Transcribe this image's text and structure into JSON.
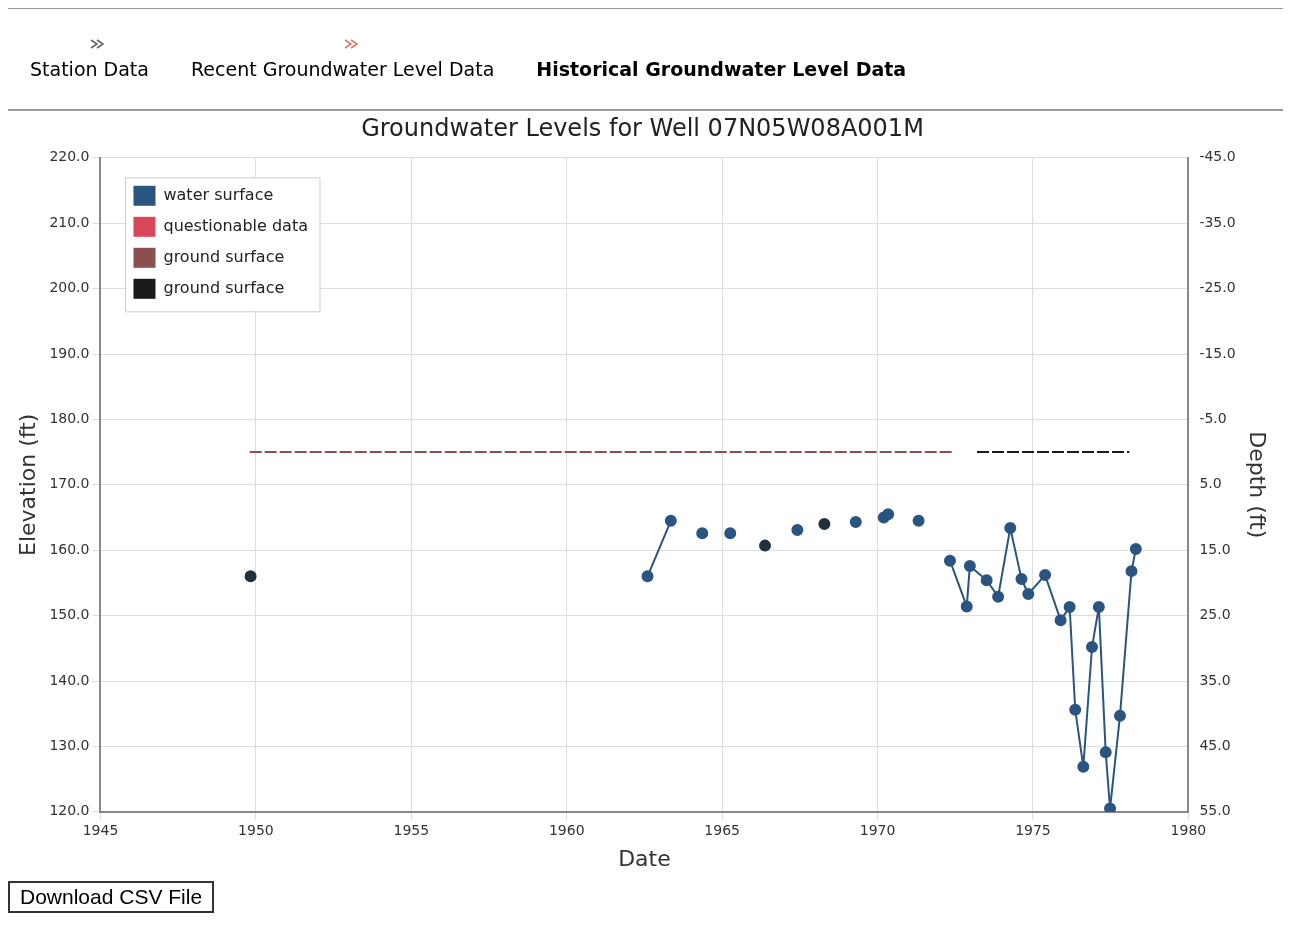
{
  "chart_data": {
    "type": "line",
    "title": "Groundwater Levels for Well 07N05W08A001M",
    "xlabel": "Date",
    "ylabel": "Elevation (ft)",
    "y2label": "Depth (ft)",
    "annotations": [
      "Station Data",
      "Recent Groundwater Level Data",
      "Historical Groundwater Level Data",
      "Download CSV File"
    ],
    "xlim": [
      1945,
      1980
    ],
    "xticks": [
      1945,
      1950,
      1955,
      1960,
      1965,
      1970,
      1975,
      1980
    ],
    "ylim": [
      120,
      220
    ],
    "yticks": [
      {
        "value": 120,
        "label": "120.0"
      },
      {
        "value": 130,
        "label": "130.0"
      },
      {
        "value": 140,
        "label": "140.0"
      },
      {
        "value": 150,
        "label": "150.0"
      },
      {
        "value": 160,
        "label": "160.0"
      },
      {
        "value": 170,
        "label": "170.0"
      },
      {
        "value": 180,
        "label": "180.0"
      },
      {
        "value": 190,
        "label": "190.0"
      },
      {
        "value": 200,
        "label": "200.0"
      },
      {
        "value": 210,
        "label": "210.0"
      },
      {
        "value": 220,
        "label": "220.0"
      }
    ],
    "y2lim": [
      55,
      -45
    ],
    "y2ticks": [
      {
        "value": 55,
        "label": "55.0"
      },
      {
        "value": 45,
        "label": "45.0"
      },
      {
        "value": 35,
        "label": "35.0"
      },
      {
        "value": 25,
        "label": "25.0"
      },
      {
        "value": 15,
        "label": "15.0"
      },
      {
        "value": 5,
        "label": "5.0"
      },
      {
        "value": -5,
        "label": "-5.0"
      },
      {
        "value": -15,
        "label": "-15.0"
      },
      {
        "value": -25,
        "label": "-25.0"
      },
      {
        "value": -35,
        "label": "-35.0"
      },
      {
        "value": -45,
        "label": "-45.0"
      }
    ],
    "grid": true,
    "legend": "top left",
    "series": [
      {
        "name": "water surface",
        "color": "#2a5580",
        "type": "line",
        "marker": "circle",
        "line_style": "solid",
        "x": [
          1962.6,
          1963.35,
          1963.8,
          1964.36,
          1964.8,
          1965.26,
          1966.3,
          1967.42,
          1968.3,
          1969.3,
          1969.8,
          1970.2,
          1970.34,
          1970.8,
          1971.32,
          1971.8,
          1972.33,
          1972.87,
          1972.97,
          1973.51,
          1973.88,
          1974.27,
          1974.63,
          1974.85,
          1975.39,
          1975.89,
          1976.18,
          1976.36,
          1976.62,
          1976.9,
          1977.12,
          1977.34,
          1977.48,
          1977.8,
          1978.17,
          1978.31
        ],
        "values": [
          156.0,
          164.5,
          null,
          162.6,
          null,
          162.6,
          null,
          163.1,
          null,
          164.3,
          null,
          165.0,
          165.5,
          null,
          164.5,
          null,
          158.4,
          151.4,
          157.6,
          155.4,
          152.9,
          163.4,
          155.6,
          153.3,
          156.2,
          149.3,
          151.3,
          135.6,
          126.9,
          145.2,
          151.3,
          129.1,
          120.5,
          134.7,
          156.8,
          160.2
        ]
      },
      {
        "name": "questionable data",
        "color": "#d9475a",
        "type": "scatter",
        "marker": "circle"
      },
      {
        "name": "ground surface",
        "color": "#8b4f4f",
        "type": "line",
        "marker": "none",
        "line_style": "dashed",
        "x": [
          1949.8,
          1972.4
        ],
        "values": [
          175,
          175
        ]
      },
      {
        "name": "ground surface",
        "color": "#1a1a1a",
        "type": "line",
        "marker": "none",
        "line_style": "dashed",
        "x": [
          1973.2,
          1978.1
        ],
        "values": [
          175,
          175
        ]
      },
      {
        "color": "#22303c",
        "type": "scatter",
        "marker": "circle",
        "x": [
          1949.83,
          1966.38,
          1968.29
        ],
        "values": [
          156.0,
          160.7,
          164.0
        ]
      }
    ]
  }
}
